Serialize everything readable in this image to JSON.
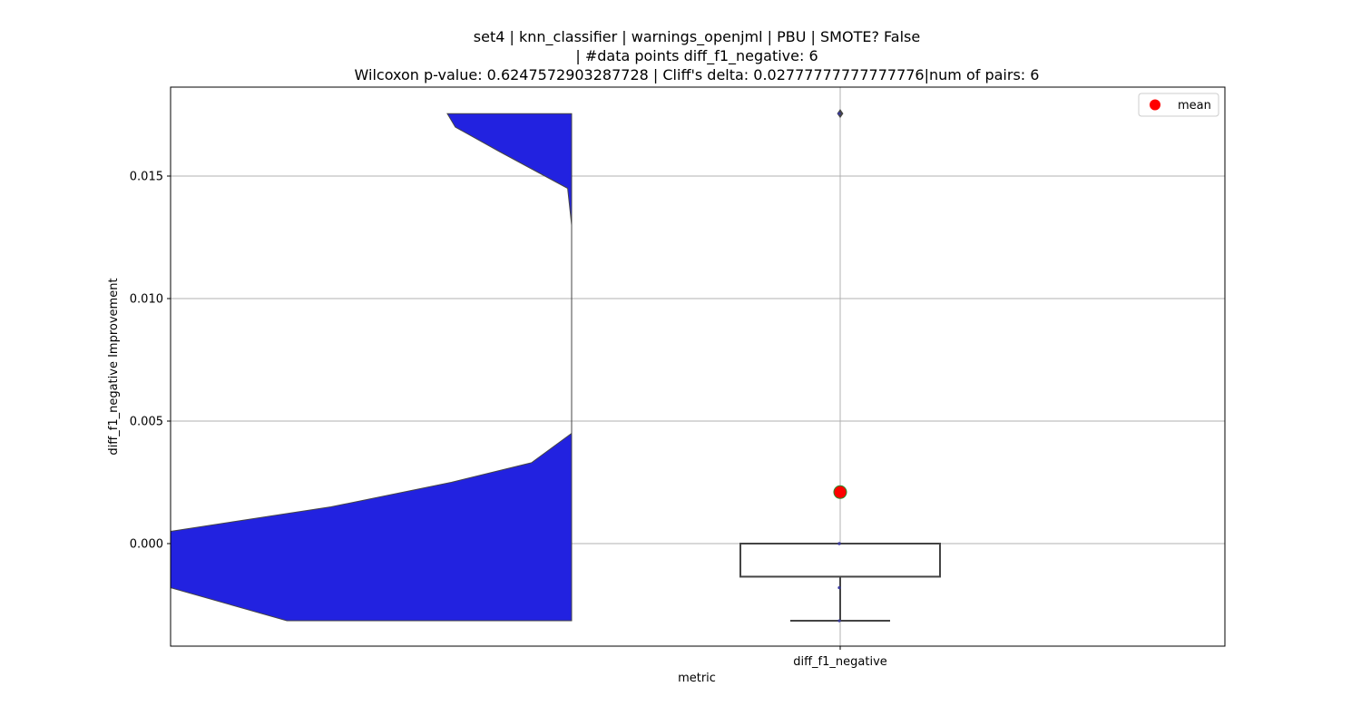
{
  "chart_data": {
    "type": "violin",
    "title_lines": [
      "set4 | knn_classifier | warnings_openjml | PBU | SMOTE? False",
      "| #data points diff_f1_negative: 6",
      "Wilcoxon p-value: 0.6247572903287728 | Cliff's delta: 0.02777777777777776|num of pairs: 6"
    ],
    "xlabel": "metric",
    "ylabel": "diff_f1_negative Improvement",
    "categories": [
      "diff_f1_negative"
    ],
    "ylim": [
      -0.0042,
      0.0186
    ],
    "yticks": [
      0.0,
      0.005,
      0.01,
      0.015
    ],
    "ytick_labels": [
      "0.000",
      "0.005",
      "0.010",
      "0.015"
    ],
    "grid": true,
    "violin": {
      "color": "#2222e0",
      "side": "left-half",
      "profile": [
        {
          "y": -0.00315,
          "width": 0.71
        },
        {
          "y": -0.0018,
          "width": 1.0
        },
        {
          "y": 0.0,
          "width": 1.0
        },
        {
          "y": 0.0005,
          "width": 1.0
        },
        {
          "y": 0.0015,
          "width": 0.6
        },
        {
          "y": 0.0025,
          "width": 0.3
        },
        {
          "y": 0.0033,
          "width": 0.1
        },
        {
          "y": 0.0045,
          "width": 0.0
        },
        {
          "y": 0.006,
          "width": 0.0
        },
        {
          "y": 0.01,
          "width": 0.0
        },
        {
          "y": 0.013,
          "width": 0.0
        },
        {
          "y": 0.0145,
          "width": 0.01
        },
        {
          "y": 0.016,
          "width": 0.18
        },
        {
          "y": 0.017,
          "width": 0.29
        },
        {
          "y": 0.01755,
          "width": 0.31
        }
      ]
    },
    "box": {
      "q1": -0.00135,
      "median": 0.0,
      "q3": 0.0,
      "whisker_low": -0.00315,
      "whisker_high": 0.0,
      "outliers": [
        0.01755
      ]
    },
    "points": [
      0.0,
      0.0,
      0.0,
      -0.0018,
      -0.00315,
      0.01755
    ],
    "mean": 0.0021,
    "legend": {
      "position": "top-right",
      "entries": [
        {
          "label": "mean",
          "color": "#ff0000"
        }
      ]
    }
  }
}
